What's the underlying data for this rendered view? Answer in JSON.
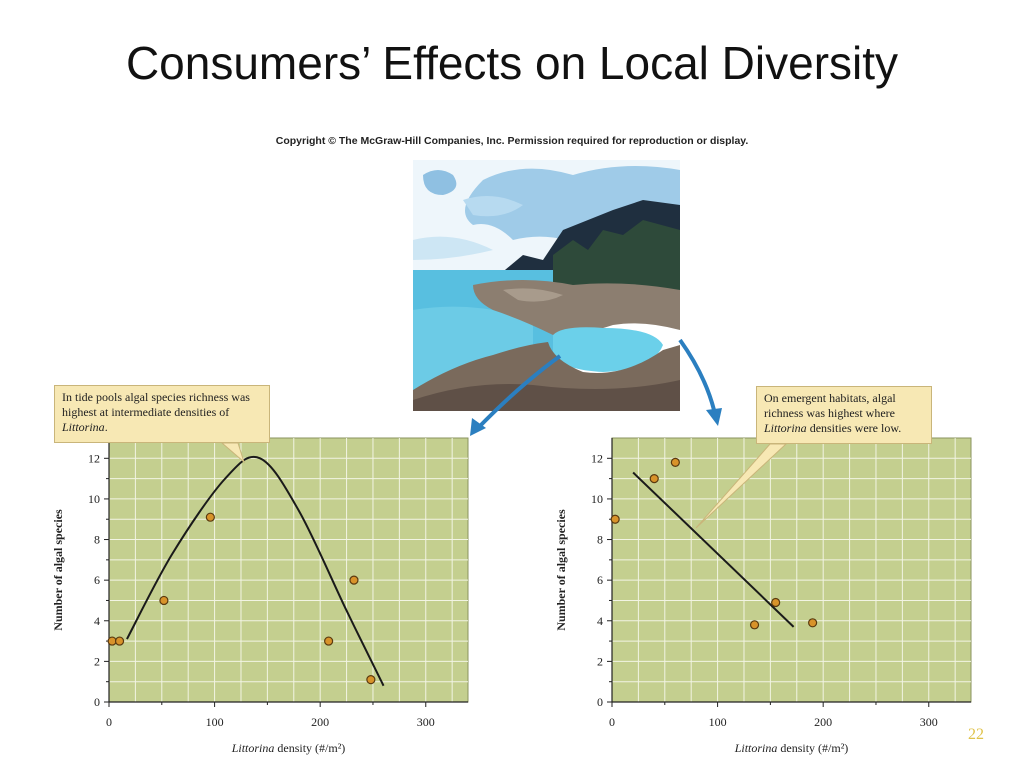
{
  "slide": {
    "title": "Consumers’ Effects on Local Diversity",
    "copyright": "Copyright © The McGraw-Hill Companies, Inc. Permission required for reproduction or display.",
    "page_number": "22"
  },
  "colors": {
    "plot_bg": "#c4cf8f",
    "grid": "#f2f4e3",
    "point_fill": "#d8932a",
    "point_stroke": "#5a3a10",
    "arrow": "#2b7fc0",
    "callout_bg": "#f7e8b4"
  },
  "callouts": {
    "left_pre": "In tide pools algal species richness was highest at intermediate densities of ",
    "left_em": "Littorina",
    "left_post": ".",
    "right_pre": "On emergent habitats, algal richness was highest where ",
    "right_em": "Littorina",
    "right_post": " densities were low."
  },
  "chart_data": [
    {
      "type": "scatter",
      "title": "",
      "xlabel_em": "Littorina",
      "xlabel_rest": " density (#/m²)",
      "ylabel": "Number of algal species",
      "xlim": [
        0,
        340
      ],
      "ylim": [
        0,
        13
      ],
      "x_ticks": [
        0,
        100,
        200,
        300
      ],
      "y_ticks": [
        0,
        2,
        4,
        6,
        8,
        10,
        12
      ],
      "grid": true,
      "points": [
        {
          "x": 3,
          "y": 3
        },
        {
          "x": 10,
          "y": 3
        },
        {
          "x": 52,
          "y": 5
        },
        {
          "x": 96,
          "y": 9.1
        },
        {
          "x": 208,
          "y": 3
        },
        {
          "x": 232,
          "y": 6
        },
        {
          "x": 248,
          "y": 1.1
        }
      ],
      "fit": {
        "type": "curve",
        "points": [
          [
            17,
            3.1
          ],
          [
            60,
            7.3
          ],
          [
            110,
            11
          ],
          [
            143,
            12
          ],
          [
            180,
            9.4
          ],
          [
            225,
            4.5
          ],
          [
            260,
            0.8
          ]
        ]
      }
    },
    {
      "type": "scatter",
      "title": "",
      "xlabel_em": "Littorina",
      "xlabel_rest": " density (#/m²)",
      "ylabel": "Number of algal species",
      "xlim": [
        0,
        340
      ],
      "ylim": [
        0,
        13
      ],
      "x_ticks": [
        0,
        100,
        200,
        300
      ],
      "y_ticks": [
        0,
        2,
        4,
        6,
        8,
        10,
        12
      ],
      "grid": true,
      "points": [
        {
          "x": 3,
          "y": 9
        },
        {
          "x": 40,
          "y": 11
        },
        {
          "x": 60,
          "y": 11.8
        },
        {
          "x": 135,
          "y": 3.8
        },
        {
          "x": 155,
          "y": 4.9
        },
        {
          "x": 190,
          "y": 3.9
        }
      ],
      "fit": {
        "type": "line",
        "points": [
          [
            20,
            11.3
          ],
          [
            172,
            3.7
          ]
        ]
      }
    }
  ]
}
